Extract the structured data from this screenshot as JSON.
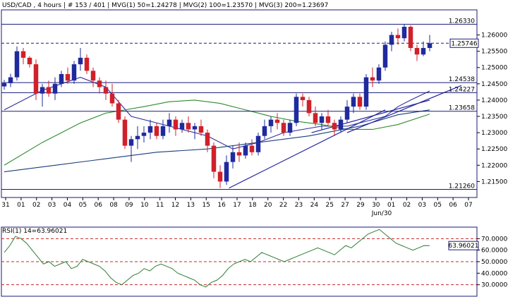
{
  "header": {
    "symbol": "USD/CAD",
    "timeframe": "4 hours",
    "bars": "# 153 / 401",
    "mvg1": "MVG(1) 50=1.24278",
    "mvg2": "MVG(2) 100=1.23570",
    "mvg3": "MVG(3) 200=1.23697"
  },
  "rsi_header": "RSI(1) 14=63.96021",
  "colors": {
    "plot_bg": "#ffffff",
    "frame": "#1a1a7a",
    "bull": "#1f2a9e",
    "bear": "#d0202a",
    "ma50": "#2e2e9e",
    "ma100": "#2e8b2e",
    "ma200": "#1a3d7a",
    "trend": "#2424a0",
    "rsi_line": "#2e7d32",
    "rsi_ref": "#c62828",
    "last_price_bg": "#ffffff"
  },
  "chart_data": [
    {
      "type": "candlestick",
      "ylim": [
        1.2101,
        1.2677
      ],
      "y_ticks": [
        "1.26000",
        "1.25500",
        "1.25000",
        "1.24500",
        "1.24000",
        "1.23500",
        "1.23000",
        "1.22500",
        "1.22000",
        "1.21500"
      ],
      "x_ticks": [
        "31",
        "01",
        "02",
        "03",
        "04",
        "05",
        "06",
        "08",
        "09",
        "10",
        "11",
        "12",
        "13",
        "15",
        "16",
        "17",
        "18",
        "20",
        "22",
        "23",
        "24",
        "25",
        "27",
        "29",
        "30",
        "01",
        "02",
        "03",
        "05",
        "06",
        "07"
      ],
      "x_sublabel": "Jun/30",
      "horizontal_levels": [
        {
          "value": 1.2633,
          "label": "1.26330",
          "style": "solid"
        },
        {
          "value": 1.25746,
          "label": "1.25746",
          "style": "dashed"
        },
        {
          "value": 1.24538,
          "label": "1.24538",
          "style": "solid"
        },
        {
          "value": 1.24227,
          "label": "1.24227",
          "style": "solid"
        },
        {
          "value": 1.23658,
          "label": "1.23658",
          "style": "solid"
        },
        {
          "value": 1.2126,
          "label": "1.21260",
          "style": "solid"
        }
      ],
      "last_price": "1.25746",
      "trendlines": [
        {
          "x1": 17.7,
          "y1": 1.213,
          "x2": 30.0,
          "y2": 1.237
        },
        {
          "x1": 27.0,
          "y1": 1.23,
          "x2": 36.0,
          "y2": 1.2445
        },
        {
          "x1": 24.2,
          "y1": 1.23,
          "x2": 33.5,
          "y2": 1.24
        }
      ],
      "moving_averages": [
        {
          "name": "MVG(1) 50",
          "x": [
            0,
            3,
            6,
            8,
            10,
            13,
            16,
            18,
            20,
            22,
            25,
            27,
            28,
            30,
            31,
            32,
            33.5
          ],
          "y": [
            1.237,
            1.243,
            1.247,
            1.244,
            1.235,
            1.232,
            1.229,
            1.225,
            1.227,
            1.23,
            1.232,
            1.232,
            1.233,
            1.235,
            1.238,
            1.24,
            1.2428
          ]
        },
        {
          "name": "MVG(2) 100",
          "x": [
            0,
            3,
            6,
            8,
            11,
            13,
            15,
            17,
            19,
            21,
            23,
            25,
            27,
            29,
            31,
            33.5
          ],
          "y": [
            1.22,
            1.227,
            1.233,
            1.236,
            1.238,
            1.2395,
            1.24,
            1.239,
            1.237,
            1.235,
            1.2335,
            1.2325,
            1.231,
            1.231,
            1.2325,
            1.2357
          ]
        },
        {
          "name": "MVG(3) 200",
          "x": [
            0,
            4,
            8,
            12,
            16,
            20,
            24,
            28,
            31,
            33.5
          ],
          "y": [
            1.218,
            1.22,
            1.222,
            1.224,
            1.225,
            1.227,
            1.229,
            1.232,
            1.2355,
            1.237
          ]
        }
      ],
      "candles": [
        [
          0.0,
          1.2442,
          1.2462,
          1.2432,
          1.2452
        ],
        [
          0.5,
          1.2452,
          1.2481,
          1.244,
          1.247
        ],
        [
          1.0,
          1.247,
          1.2565,
          1.246,
          1.255
        ],
        [
          1.5,
          1.255,
          1.256,
          1.251,
          1.253
        ],
        [
          2.0,
          1.253,
          1.2535,
          1.25,
          1.251
        ],
        [
          2.5,
          1.251,
          1.2525,
          1.24,
          1.242
        ],
        [
          3.0,
          1.242,
          1.245,
          1.238,
          1.244
        ],
        [
          3.5,
          1.244,
          1.246,
          1.241,
          1.242
        ],
        [
          4.0,
          1.242,
          1.247,
          1.24,
          1.245
        ],
        [
          4.5,
          1.245,
          1.249,
          1.244,
          1.248
        ],
        [
          5.0,
          1.248,
          1.25,
          1.245,
          1.246
        ],
        [
          5.5,
          1.246,
          1.252,
          1.245,
          1.251
        ],
        [
          6.0,
          1.251,
          1.256,
          1.249,
          1.253
        ],
        [
          6.5,
          1.253,
          1.254,
          1.248,
          1.249
        ],
        [
          7.0,
          1.249,
          1.25,
          1.244,
          1.246
        ],
        [
          7.5,
          1.246,
          1.247,
          1.242,
          1.244
        ],
        [
          8.0,
          1.244,
          1.246,
          1.24,
          1.242
        ],
        [
          8.5,
          1.242,
          1.245,
          1.238,
          1.239
        ],
        [
          9.0,
          1.239,
          1.24,
          1.233,
          1.234
        ],
        [
          9.5,
          1.234,
          1.235,
          1.225,
          1.226
        ],
        [
          10.0,
          1.226,
          1.229,
          1.221,
          1.228
        ],
        [
          10.5,
          1.228,
          1.232,
          1.225,
          1.229
        ],
        [
          11.0,
          1.229,
          1.232,
          1.227,
          1.23
        ],
        [
          11.5,
          1.23,
          1.234,
          1.228,
          1.232
        ],
        [
          12.0,
          1.232,
          1.233,
          1.228,
          1.229
        ],
        [
          12.5,
          1.229,
          1.234,
          1.228,
          1.232
        ],
        [
          13.0,
          1.232,
          1.236,
          1.23,
          1.234
        ],
        [
          13.5,
          1.234,
          1.235,
          1.229,
          1.231
        ],
        [
          14.0,
          1.231,
          1.234,
          1.23,
          1.233
        ],
        [
          14.5,
          1.233,
          1.235,
          1.23,
          1.231
        ],
        [
          15.0,
          1.231,
          1.233,
          1.228,
          1.232
        ],
        [
          15.5,
          1.232,
          1.234,
          1.229,
          1.23
        ],
        [
          16.0,
          1.23,
          1.231,
          1.224,
          1.226
        ],
        [
          16.5,
          1.226,
          1.227,
          1.216,
          1.218
        ],
        [
          17.0,
          1.218,
          1.22,
          1.213,
          1.215
        ],
        [
          17.5,
          1.215,
          1.223,
          1.214,
          1.221
        ],
        [
          18.0,
          1.221,
          1.226,
          1.219,
          1.224
        ],
        [
          18.5,
          1.224,
          1.227,
          1.221,
          1.223
        ],
        [
          19.0,
          1.223,
          1.227,
          1.222,
          1.226
        ],
        [
          19.5,
          1.226,
          1.228,
          1.223,
          1.224
        ],
        [
          20.0,
          1.224,
          1.23,
          1.223,
          1.229
        ],
        [
          20.5,
          1.229,
          1.234,
          1.228,
          1.232
        ],
        [
          21.0,
          1.232,
          1.235,
          1.23,
          1.234
        ],
        [
          21.5,
          1.234,
          1.236,
          1.231,
          1.233
        ],
        [
          22.0,
          1.233,
          1.234,
          1.229,
          1.23
        ],
        [
          22.5,
          1.23,
          1.234,
          1.229,
          1.233
        ],
        [
          23.0,
          1.233,
          1.242,
          1.232,
          1.241
        ],
        [
          23.5,
          1.241,
          1.242,
          1.238,
          1.24
        ],
        [
          24.0,
          1.24,
          1.241,
          1.235,
          1.236
        ],
        [
          24.5,
          1.236,
          1.238,
          1.232,
          1.233
        ],
        [
          25.0,
          1.233,
          1.236,
          1.231,
          1.235
        ],
        [
          25.5,
          1.235,
          1.237,
          1.232,
          1.233
        ],
        [
          26.0,
          1.233,
          1.234,
          1.229,
          1.231
        ],
        [
          26.5,
          1.231,
          1.235,
          1.23,
          1.234
        ],
        [
          27.0,
          1.234,
          1.24,
          1.233,
          1.238
        ],
        [
          27.5,
          1.238,
          1.242,
          1.236,
          1.241
        ],
        [
          28.0,
          1.241,
          1.242,
          1.237,
          1.238
        ],
        [
          28.5,
          1.238,
          1.248,
          1.237,
          1.247
        ],
        [
          29.0,
          1.247,
          1.25,
          1.244,
          1.246
        ],
        [
          29.5,
          1.246,
          1.251,
          1.245,
          1.25
        ],
        [
          30.0,
          1.25,
          1.258,
          1.249,
          1.257
        ],
        [
          30.5,
          1.257,
          1.261,
          1.255,
          1.26
        ],
        [
          31.0,
          1.26,
          1.262,
          1.257,
          1.259
        ],
        [
          31.5,
          1.259,
          1.2633,
          1.258,
          1.2625
        ],
        [
          32.0,
          1.2625,
          1.263,
          1.255,
          1.256
        ],
        [
          32.5,
          1.256,
          1.257,
          1.252,
          1.254
        ],
        [
          33.0,
          1.254,
          1.258,
          1.2535,
          1.256
        ],
        [
          33.5,
          1.256,
          1.26,
          1.255,
          1.25746
        ]
      ]
    },
    {
      "type": "line",
      "title": "RSI(1) 14=63.96021",
      "ylim": [
        20,
        80
      ],
      "y_ticks": [
        "70.00000",
        "60.00000",
        "50.00000",
        "40.00000",
        "30.00000"
      ],
      "reference_lines": [
        70,
        50,
        30
      ],
      "last_value": "63.96021",
      "series": [
        {
          "values": [
            58,
            64,
            72,
            70,
            66,
            60,
            54,
            48,
            50,
            46,
            48,
            50,
            44,
            46,
            52,
            50,
            48,
            46,
            42,
            36,
            32,
            30,
            34,
            38,
            40,
            44,
            42,
            46,
            48,
            46,
            44,
            40,
            38,
            36,
            34,
            30,
            28,
            32,
            34,
            38,
            44,
            48,
            50,
            52,
            50,
            54,
            58,
            56,
            54,
            52,
            50,
            52,
            54,
            56,
            58,
            60,
            62,
            60,
            58,
            56,
            60,
            64,
            62,
            66,
            70,
            74,
            76,
            78,
            74,
            70,
            66,
            64,
            62,
            60,
            62,
            64,
            63.96
          ]
        }
      ]
    }
  ]
}
